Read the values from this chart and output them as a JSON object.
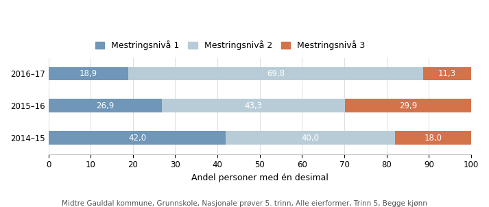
{
  "years": [
    "2014–15",
    "2015–16",
    "2016–17"
  ],
  "nivå1": [
    42.0,
    26.9,
    18.9
  ],
  "nivå2": [
    40.0,
    43.3,
    69.8
  ],
  "nivå3": [
    18.0,
    29.9,
    11.3
  ],
  "color1": "#7096b8",
  "color2": "#b8ccd8",
  "color3": "#d4724a",
  "legend_labels": [
    "Mestringsnivå 1",
    "Mestringsnivå 2",
    "Mestringsnivå 3"
  ],
  "xlabel": "Andel personer med én desimal",
  "footnote": "Midtre Gauldal kommune, Grunnskole, Nasjonale prøver 5. trinn, Alle eierformer, Trinn 5, Begge kjønn",
  "xlim": [
    0,
    100
  ],
  "xticks": [
    0,
    10,
    20,
    30,
    40,
    50,
    60,
    70,
    80,
    90,
    100
  ],
  "bar_height": 0.42,
  "fontsize_labels": 8.5,
  "fontsize_ticks": 8.5,
  "fontsize_legend": 9,
  "fontsize_footnote": 7.5,
  "fontsize_xlabel": 9
}
